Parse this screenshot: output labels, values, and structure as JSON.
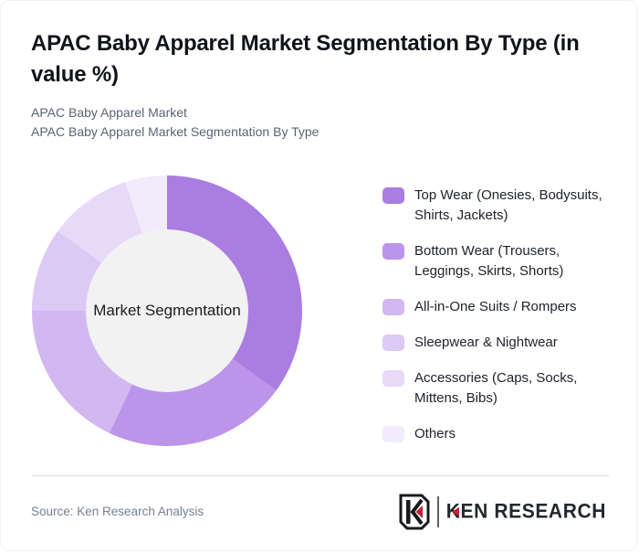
{
  "header": {
    "title": "APAC Baby Apparel Market Segmentation By Type (in value %)",
    "subtitle_line1": "APAC Baby Apparel Market",
    "subtitle_line2": "APAC Baby Apparel Market Segmentation By Type"
  },
  "chart_data": {
    "type": "pie",
    "variant": "donut",
    "title": "APAC Baby Apparel Market Segmentation By Type (in value %)",
    "center_label": "Market Segmentation",
    "unit": "value %",
    "start_angle_deg": 0,
    "direction": "clockwise",
    "legend_position": "right",
    "categories": [
      "Top Wear (Onesies, Bodysuits, Shirts, Jackets)",
      "Bottom Wear (Trousers, Leggings, Skirts, Shorts)",
      "All-in-One Suits / Rompers",
      "Sleepwear & Nightwear",
      "Accessories (Caps, Socks, Mittens, Bibs)",
      "Others"
    ],
    "values": [
      35,
      22,
      18,
      10,
      10,
      5
    ],
    "colors": [
      "#aa7de1",
      "#bc94ea",
      "#d2b8f0",
      "#dcc9f4",
      "#e7d9f8",
      "#f1ebfb"
    ],
    "hole_color": "#f2f2f2"
  },
  "footer": {
    "source": "Source: Ken Research Analysis",
    "logo": {
      "brand_k": "K",
      "brand_rest": "EN RESEARCH",
      "accent_color": "#c32032"
    }
  }
}
